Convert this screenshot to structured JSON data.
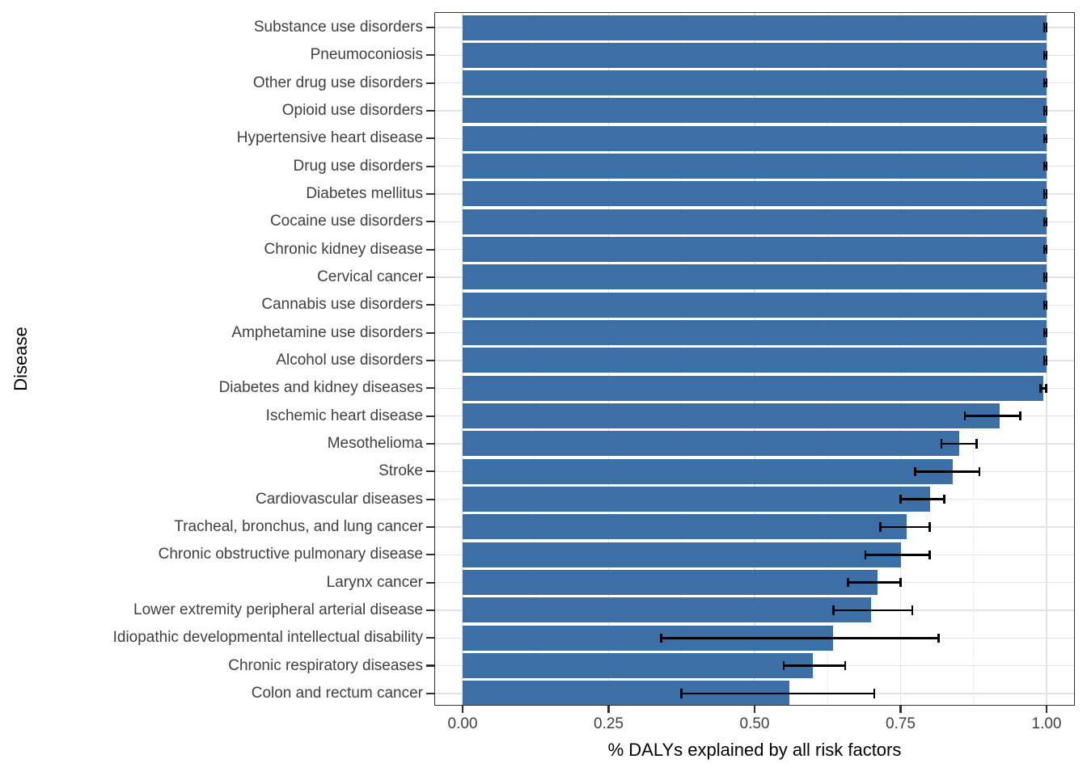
{
  "chart_data": {
    "type": "bar",
    "orientation": "horizontal",
    "title": "",
    "xlabel": "% DALYs explained by all risk factors",
    "ylabel": "Disease",
    "xlim": [
      0,
      1
    ],
    "grid": "on",
    "legend": "none",
    "x_ticks": [
      0.0,
      0.25,
      0.5,
      0.75,
      1.0
    ],
    "x_tick_labels": [
      "0.00",
      "0.25",
      "0.50",
      "0.75",
      "1.00"
    ],
    "x_minor_ticks": [
      0.125,
      0.375,
      0.625,
      0.875
    ],
    "colors": {
      "bar_fill": "#3C6FA6",
      "error_bar": "#000000",
      "grid_major": "#E3E3E3",
      "grid_minor": "#F0F0F0",
      "panel_border": "#2f2f2f",
      "axis_text": "#404040",
      "axis_title": "#000000"
    },
    "categories": [
      "Substance use disorders",
      "Pneumoconiosis",
      "Other drug use disorders",
      "Opioid use disorders",
      "Hypertensive heart disease",
      "Drug use disorders",
      "Diabetes mellitus",
      "Cocaine use disorders",
      "Chronic kidney disease",
      "Cervical cancer",
      "Cannabis use disorders",
      "Amphetamine use disorders",
      "Alcohol use disorders",
      "Diabetes and kidney diseases",
      "Ischemic heart disease",
      "Mesothelioma",
      "Stroke",
      "Cardiovascular diseases",
      "Tracheal, bronchus, and lung cancer",
      "Chronic obstructive pulmonary disease",
      "Larynx cancer",
      "Lower extremity peripheral arterial disease",
      "Idiopathic developmental intellectual disability",
      "Chronic respiratory diseases",
      "Colon and rectum cancer"
    ],
    "values": [
      1.0,
      1.0,
      1.0,
      1.0,
      1.0,
      1.0,
      1.0,
      1.0,
      1.0,
      1.0,
      1.0,
      1.0,
      1.0,
      0.995,
      0.92,
      0.85,
      0.84,
      0.8,
      0.76,
      0.75,
      0.71,
      0.7,
      0.635,
      0.6,
      0.56
    ],
    "ci_low": [
      0.996,
      0.996,
      0.996,
      0.996,
      0.996,
      0.996,
      0.996,
      0.996,
      0.996,
      0.996,
      0.996,
      0.996,
      0.996,
      0.99,
      0.86,
      0.82,
      0.775,
      0.75,
      0.715,
      0.69,
      0.66,
      0.635,
      0.34,
      0.55,
      0.375
    ],
    "ci_high": [
      1.0,
      1.0,
      1.0,
      1.0,
      1.0,
      1.0,
      1.0,
      1.0,
      1.0,
      1.0,
      1.0,
      1.0,
      1.0,
      0.999,
      0.955,
      0.88,
      0.885,
      0.825,
      0.8,
      0.8,
      0.75,
      0.77,
      0.815,
      0.655,
      0.705
    ]
  }
}
